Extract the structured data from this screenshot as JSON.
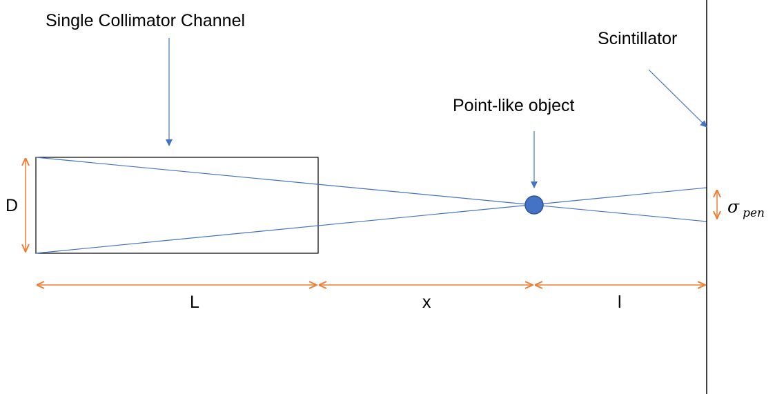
{
  "labels": {
    "collimator": "Single Collimator Channel",
    "scintillator": "Scintillator",
    "object": "Point-like object",
    "D": "D",
    "L": "L",
    "x": "x",
    "l": "l",
    "sigma": "σ",
    "sigma_sub": "pen"
  },
  "colors": {
    "ray": "#4472C4",
    "dimension": "#ED7D31",
    "outline": "#000000",
    "object_fill": "#4472C4",
    "object_stroke": "#2F5597"
  }
}
